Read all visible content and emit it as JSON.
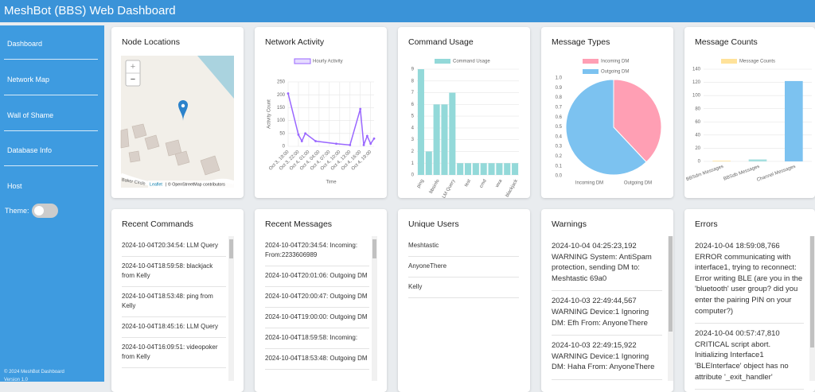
{
  "header": {
    "title": "MeshBot (BBS) Web Dashboard"
  },
  "sidebar": {
    "items": [
      "Dashboard",
      "Network Map",
      "Wall of Shame",
      "Database Info",
      "Host"
    ],
    "theme_label": "Theme:",
    "footer": [
      "© 2024 MeshBot Dashboard",
      "Version 1.0"
    ]
  },
  "map": {
    "title": "Node Locations",
    "zoom_in": "+",
    "zoom_out": "−",
    "street": "Baker Circle",
    "attribution_link": "Leaflet",
    "attribution": "| © OpenStreetMap contributors"
  },
  "chart_data": [
    {
      "type": "line",
      "title": "Network Activity",
      "label": "Hourly Activity",
      "color": "#9966ff",
      "x_label": "Time",
      "y_label": "Activity Count",
      "x": [
        "Oct 3, 19:00",
        "Oct 3, 22:00",
        "Oct 3, 23:00",
        "Oct 4, 00:00",
        "Oct 4, 03:00",
        "Oct 4, 09:00",
        "Oct 4, 13:00",
        "Oct 4, 16:00",
        "Oct 4, 17:00",
        "Oct 4, 18:00",
        "Oct 4, 19:00",
        "Oct 4, 20:00"
      ],
      "values": [
        205,
        45,
        20,
        50,
        20,
        10,
        5,
        145,
        5,
        40,
        10,
        30
      ],
      "xlim": [
        "Oct 3, 19:00",
        "Oct 4, 20:00"
      ],
      "xticks": [
        "Oct 3, 19:00",
        "Oct 3, 22:00",
        "Oct 4, 01:00",
        "Oct 4, 04:00",
        "Oct 4, 07:00",
        "Oct 4, 10:00",
        "Oct 4, 13:00",
        "Oct 4, 16:00",
        "Oct 4, 19:00"
      ],
      "ylim": [
        0,
        250
      ],
      "yticks": [
        0,
        50,
        100,
        150,
        200,
        250
      ],
      "grid": true
    },
    {
      "type": "bar",
      "title": "Command Usage",
      "label": "Command Usage",
      "color": "#93d9d9",
      "categories": [
        "ping",
        null,
        "bbsinfo",
        null,
        "LLM Query",
        null,
        "test",
        null,
        "cmd",
        null,
        "wxa",
        null,
        "blackjack"
      ],
      "values": [
        9,
        2,
        6,
        6,
        7,
        1,
        1,
        1,
        1,
        1,
        1,
        1,
        1
      ],
      "ylim": [
        0,
        9
      ],
      "yticks": [
        0,
        1,
        2,
        3,
        4,
        5,
        6,
        7,
        8,
        9
      ],
      "grid": true
    },
    {
      "type": "pie",
      "title": "Message Types",
      "categories": [
        "Incoming DM",
        "Outgoing DM"
      ],
      "values": [
        38,
        62
      ],
      "colors": [
        "#ff9fb4",
        "#7cc2f0"
      ],
      "ylim": [
        0,
        1
      ],
      "yticks": [
        {
          "value": 0,
          "label": "0.0"
        },
        0.1,
        0.2,
        0.3,
        0.4,
        0.5,
        0.6,
        0.7,
        0.8,
        0.9,
        {
          "value": 1,
          "label": "1.0"
        }
      ]
    },
    {
      "type": "bar",
      "title": "Message Counts",
      "label": "Message Counts",
      "color": "#ffe29a",
      "colors": [
        "#ffe29a",
        "#a5dfdf",
        "#7cc2f0"
      ],
      "categories": [
        "BBSdm Messages",
        "BBSdb Messages",
        "Channel Messages"
      ],
      "values": [
        1,
        3,
        122
      ],
      "ylim": [
        0,
        140
      ],
      "yticks": [
        0,
        20,
        40,
        60,
        80,
        100,
        120,
        140
      ],
      "grid": true
    }
  ],
  "panels": {
    "recent_commands": {
      "title": "Recent Commands",
      "items": [
        "2024-10-04T20:34:54: LLM Query",
        "2024-10-04T18:59:58: blackjack from Kelly",
        "2024-10-04T18:53:48: ping from Kelly",
        "2024-10-04T18:45:16: LLM Query",
        "2024-10-04T16:09:51: videopoker from Kelly"
      ]
    },
    "recent_messages": {
      "title": "Recent Messages",
      "items": [
        "2024-10-04T20:34:54: Incoming: From:2233606989",
        "2024-10-04T20:01:06: Outgoing DM",
        "2024-10-04T20:00:47: Outgoing DM",
        "2024-10-04T19:00:00: Outgoing DM",
        "2024-10-04T18:59:58: Incoming:",
        "2024-10-04T18:53:48: Outgoing DM"
      ]
    },
    "unique_users": {
      "title": "Unique Users",
      "items": [
        "Meshtastic",
        "AnyoneThere",
        "Kelly"
      ]
    },
    "warnings": {
      "title": "Warnings",
      "items": [
        "2024-10-04 04:25:23,192 WARNING System: AntiSpam protection, sending DM to: Meshtastic 69a0",
        "2024-10-03 22:49:44,567 WARNING Device:1 Ignoring DM: Efh From: AnyoneThere",
        "2024-10-03 22:49:15,922 WARNING Device:1 Ignoring DM: Haha From: AnyoneThere"
      ]
    },
    "errors": {
      "title": "Errors",
      "items": [
        "2024-10-04 18:59:08,766 ERROR communicating with interface1, trying to reconnect: Error writing BLE (are you in the 'bluetooth' user group? did you enter the pairing PIN on your computer?)",
        "2024-10-04 00:57:47,810 CRITICAL script abort. Initializing Interface1 'BLEInterface' object has no attribute '_exit_handler'"
      ]
    }
  }
}
